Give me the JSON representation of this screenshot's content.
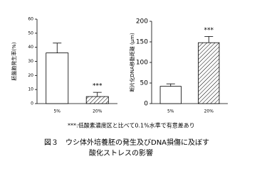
{
  "chart_data": [
    {
      "type": "bar",
      "y_label": "胚盤胞発生率(%)",
      "categories": [
        "5%",
        "20%"
      ],
      "values": [
        36,
        5
      ],
      "errors": [
        7,
        3
      ],
      "fills": [
        "white",
        "hatch"
      ],
      "ylim": [
        0,
        60
      ],
      "yticks": [
        0,
        10,
        20,
        30,
        40,
        50,
        60
      ],
      "annotation": "***",
      "annotation_category": "20%"
    },
    {
      "type": "bar",
      "y_label": "断片化DNA移動距離  (μm)",
      "categories": [
        "5%",
        "20%"
      ],
      "values": [
        42,
        148
      ],
      "errors": [
        6,
        15
      ],
      "fills": [
        "white",
        "hatch"
      ],
      "ylim": [
        0,
        200
      ],
      "yticks": [
        0,
        50,
        100,
        150,
        200
      ],
      "annotation": "***",
      "annotation_category": "20%"
    }
  ],
  "note": "***:低酸素濃度区と比べて0.1%水準で有意差あり",
  "caption": [
    "図３　ウシ体外培養胚の発生及びDNA損傷に及ぼす",
    "酸化ストレスの影響"
  ]
}
